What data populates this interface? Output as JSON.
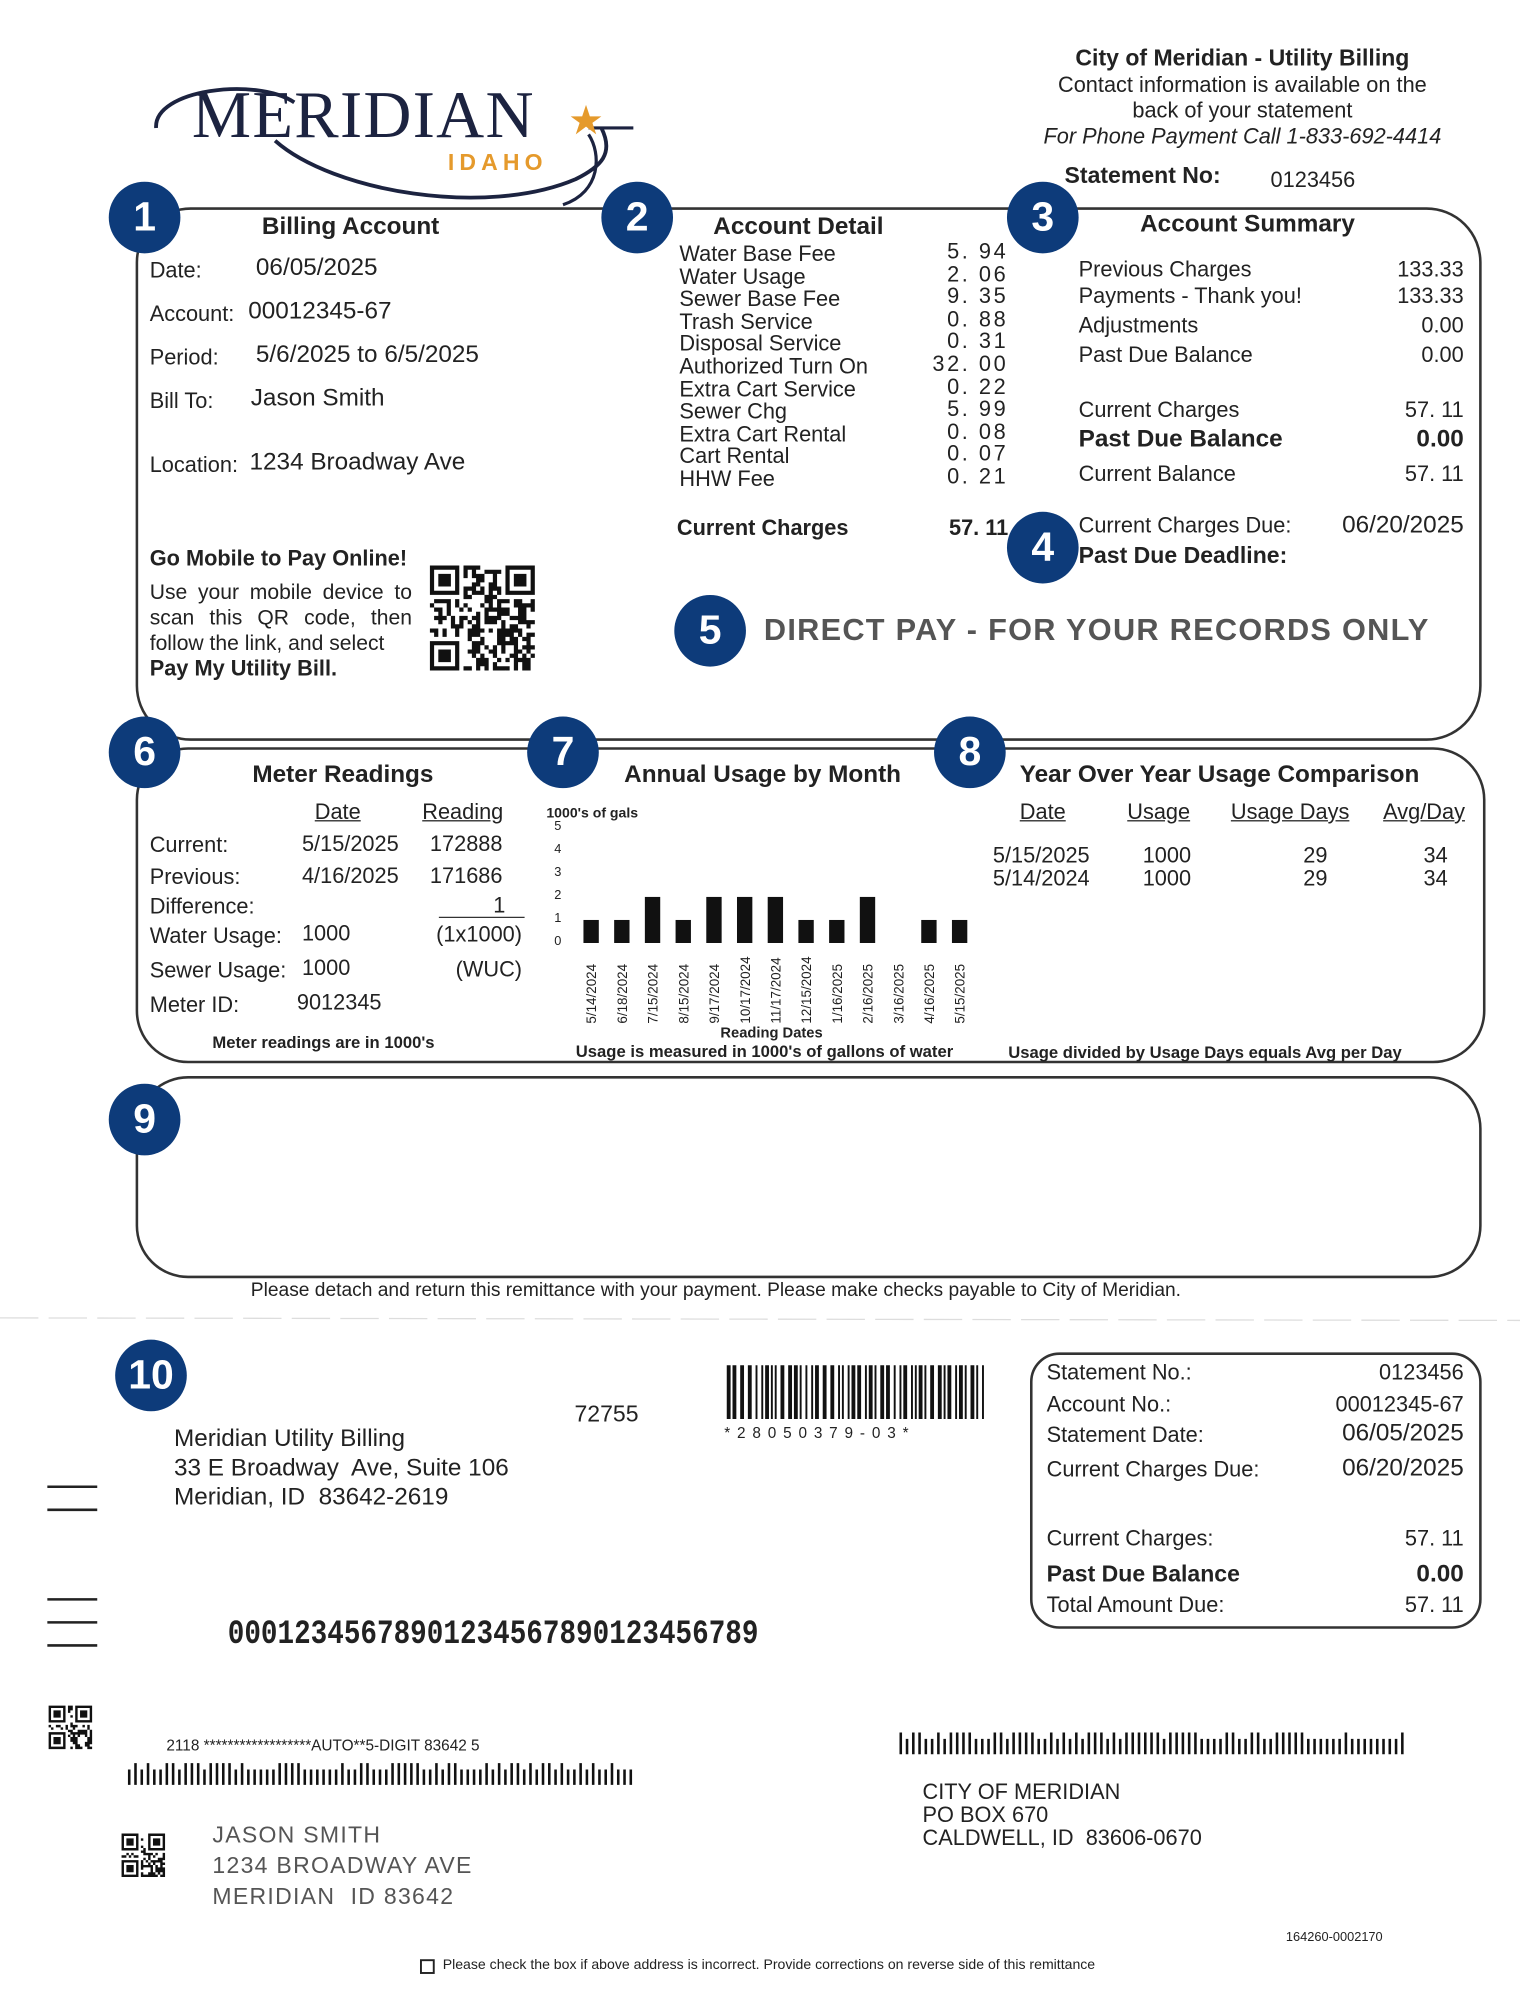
{
  "header": {
    "logo": "MERIDIAN",
    "logo_sub": "IDAHO",
    "org": "City of Meridian - Utility Billing",
    "contact": [
      "Contact information is available on the",
      "back of your statement"
    ],
    "phone": "For Phone Payment Call 1-833-692-4414",
    "statement_label": "Statement No:",
    "statement_no": "0123456"
  },
  "markers": [
    "1",
    "2",
    "3",
    "4",
    "5",
    "6",
    "7",
    "8",
    "9",
    "10"
  ],
  "billing_account": {
    "title": "Billing Account",
    "rows": [
      [
        "Date:",
        "06/05/2025"
      ],
      [
        "Account:",
        "00012345-67"
      ],
      [
        "Period:",
        "5/6/2025 to 6/5/2025"
      ],
      [
        "Bill To:",
        "Jason Smith"
      ],
      [
        "Location:",
        "1234 Broadway Ave"
      ]
    ]
  },
  "go_mobile": {
    "title": "Go Mobile to Pay Online!",
    "text": "Use your mobile device to scan this QR code, then follow the link, and select",
    "link": "Pay My Utility Bill."
  },
  "account_detail": {
    "title": "Account Detail",
    "items": [
      [
        "Water Base Fee",
        "5. 94"
      ],
      [
        "Water Usage",
        "2. 06"
      ],
      [
        "Sewer Base Fee",
        "9. 35"
      ],
      [
        "Trash Service",
        "0. 88"
      ],
      [
        "Disposal Service",
        "0. 31"
      ],
      [
        "Authorized Turn On",
        "32. 00"
      ],
      [
        "Extra Cart Service",
        "0. 22"
      ],
      [
        "Sewer Chg",
        "5. 99"
      ],
      [
        "Extra Cart Rental",
        "0. 08"
      ],
      [
        "Cart Rental",
        "0. 07"
      ],
      [
        "HHW Fee",
        "0. 21"
      ]
    ],
    "total": [
      "Current Charges",
      "57. 11"
    ]
  },
  "account_summary": {
    "title": "Account Summary",
    "rows": [
      [
        "Previous Charges",
        "133.33"
      ],
      [
        "Payments - Thank you!",
        "133.33"
      ],
      [
        "Adjustments",
        "0.00"
      ],
      [
        "Past Due Balance",
        "0.00"
      ],
      [
        "Current Charges",
        "57. 11"
      ],
      [
        "Past Due Balance",
        "0.00"
      ],
      [
        "Current Balance",
        "57. 11"
      ]
    ],
    "due": [
      "Current Charges Due:",
      "06/20/2025"
    ],
    "deadline": "Past Due Deadline:"
  },
  "direct_pay": "DIRECT PAY - FOR YOUR RECORDS ONLY",
  "meter_readings": {
    "title": "Meter Readings",
    "headers": [
      "Date",
      "Reading"
    ],
    "rows": [
      {
        "label": "Current:",
        "date": "5/15/2025",
        "reading": "172888"
      },
      {
        "label": "Previous:",
        "date": "4/16/2025",
        "reading": "171686"
      },
      {
        "label": "Difference:",
        "reading": "1"
      },
      {
        "label": "Water Usage:",
        "value": "1000",
        "note": "(1x1000)"
      },
      {
        "label": "Sewer Usage:",
        "value": "1000",
        "note": "(WUC)"
      },
      {
        "label": "Meter ID:",
        "value": "9012345"
      }
    ],
    "note": "Meter readings are in 1000's"
  },
  "annual_usage": {
    "type": "bar",
    "title": "Annual Usage by Month",
    "unit": "1000's of gals",
    "ylim": [
      0,
      5
    ],
    "yticks": [
      0,
      1,
      2,
      3,
      4,
      5
    ],
    "categories": [
      "5/14/2024",
      "6/18/2024",
      "7/15/2024",
      "8/15/2024",
      "9/17/2024",
      "10/17/2024",
      "11/17/2024",
      "12/15/2024",
      "1/16/2025",
      "2/16/2025",
      "3/16/2025",
      "4/16/2025",
      "5/15/2025"
    ],
    "values": [
      1,
      1,
      2,
      1,
      2,
      2,
      2,
      1,
      1,
      2,
      0,
      1,
      1
    ],
    "color": "#111111",
    "xlabel": "Reading Dates",
    "note": "Usage is measured in 1000's of gallons of water"
  },
  "yoy": {
    "title": "Year Over Year Usage Comparison",
    "headers": [
      "Date",
      "Usage",
      "Usage Days",
      "Avg/Day"
    ],
    "rows": [
      [
        "5/15/2025",
        "1000",
        "29",
        "34"
      ],
      [
        "5/14/2024",
        "1000",
        "29",
        "34"
      ]
    ],
    "note": "Usage divided by Usage Days equals Avg per Day"
  },
  "remittance_note": "Please detach and return this remittance with your payment. Please make checks payable to City of Meridian.",
  "remit": {
    "address": [
      "Meridian Utility Billing",
      "33 E Broadway  Ave, Suite 106",
      "Meridian, ID  83642-2619"
    ],
    "code": "72755",
    "barcode_text": "* 2 8 0 5 0 3 7 9 - 0 3 *",
    "summary": [
      [
        "Statement No.:",
        "0123456"
      ],
      [
        "Account No.:",
        "00012345-67"
      ],
      [
        "Statement Date:",
        "06/05/2025"
      ],
      [
        "Current Charges Due:",
        "06/20/2025"
      ],
      [
        "Current Charges:",
        "57. 11"
      ],
      [
        "Past Due Balance",
        "0.00"
      ],
      [
        "Total Amount Due:",
        "57. 11"
      ]
    ],
    "scanline": "00012345678901234567890123456789",
    "mail_code": "2118 ******************AUTO**5-DIGIT 83642 5",
    "customer": [
      "JASON SMITH",
      "1234 BROADWAY AVE",
      "MERIDIAN  ID 83642"
    ],
    "payee": [
      "CITY OF MERIDIAN",
      "PO BOX 670",
      "CALDWELL, ID  83606-0670"
    ],
    "doc_id": "164260-0002170",
    "check_note": "Please check the box if above address is incorrect. Provide corrections on reverse side of this remittance"
  }
}
